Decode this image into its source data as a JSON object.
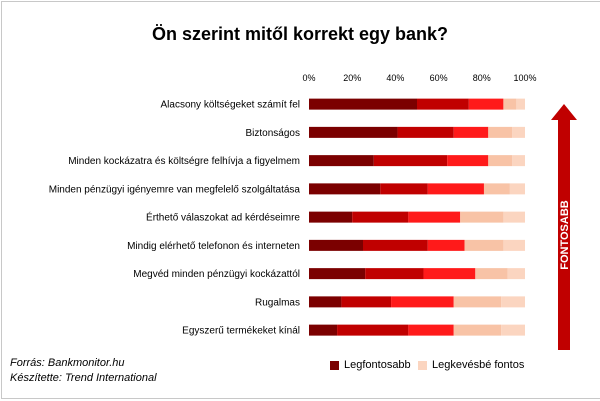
{
  "chart_data": {
    "type": "bar",
    "orientation": "horizontal",
    "stacked": "100%",
    "title": "Ön szerint mitől korrekt egy bank?",
    "categories": [
      "Alacsony költségeket számít fel",
      "Biztonságos",
      "Minden kockázatra és költségre felhívja a figyelmem",
      "Minden pénzügyi igényemre van megfelelő szolgáltatása",
      "Érthető válaszokat ad kérdéseimre",
      "Mindig elérhető telefonon és interneten",
      "Megvéd minden pénzügyi kockázattól",
      "Rugalmas",
      "Egyszerű termékeket kínál"
    ],
    "series": [
      {
        "name": "Legfontosabb",
        "color": "#7b0000",
        "values": [
          50,
          41,
          30,
          33,
          20,
          25,
          26,
          15,
          13
        ]
      },
      {
        "values": [
          24,
          26,
          34,
          22,
          26,
          30,
          27,
          23,
          33
        ],
        "color": "#c00000"
      },
      {
        "values": [
          16,
          16,
          19,
          26,
          24,
          17,
          24,
          29,
          21
        ],
        "color": "#ff1a1a"
      },
      {
        "values": [
          6,
          11,
          11,
          12,
          20,
          18,
          15,
          22,
          22
        ],
        "color": "#f8c3a6"
      },
      {
        "name": "Legkevésbé fontos",
        "color": "#fbd5c0",
        "values": [
          4,
          6,
          6,
          7,
          10,
          10,
          8,
          11,
          11
        ]
      }
    ],
    "xlim": [
      0,
      100
    ],
    "xticks": [
      "0%",
      "20%",
      "40%",
      "60%",
      "80%",
      "100%"
    ],
    "arrow_label": "FONTOSABB",
    "arrow_color": "#c00000",
    "legend_position": "bottom-right",
    "grid": false
  },
  "source_line": "Forrás: Bankmonitor.hu",
  "author_line": "Készítette: Trend International"
}
